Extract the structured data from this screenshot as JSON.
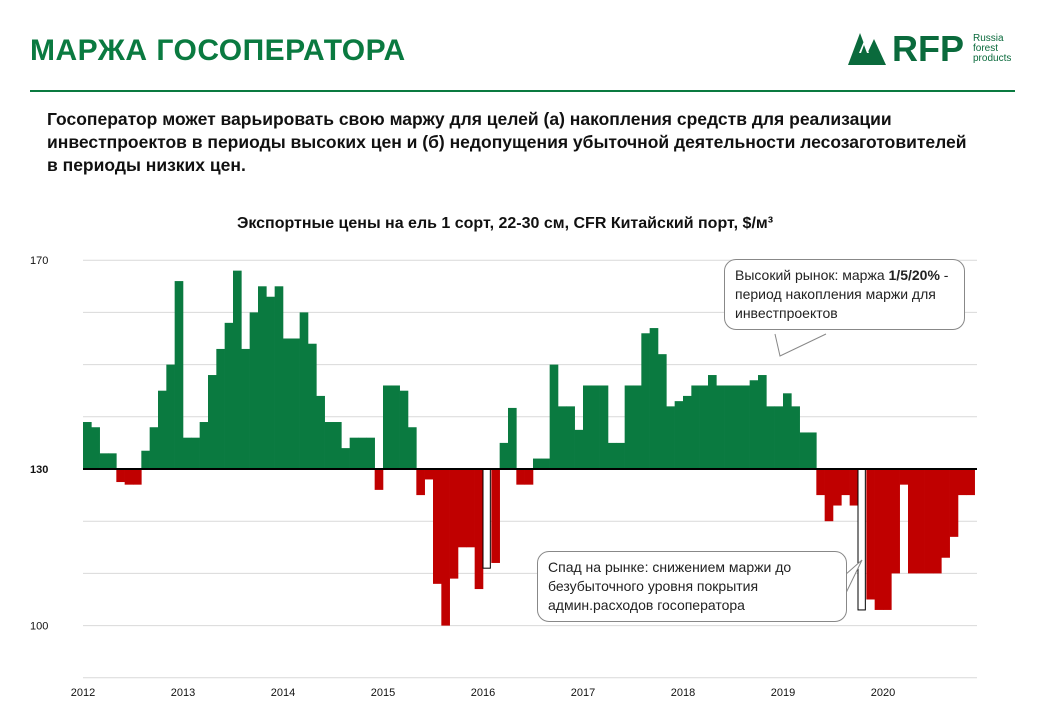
{
  "header": {
    "title": "МАРЖА ГОСОПЕРАТОРА",
    "logo": {
      "mark": "RFP",
      "tagline": [
        "Russia",
        "forest",
        "products"
      ]
    }
  },
  "intro": "Госоператор может варьировать свою маржу для целей (а) накопления средств для реализации инвестпроектов в периоды высоких цен и (б) недопущения убыточной деятельности лесозаготовителей в периоды низких цен.",
  "callouts": {
    "high": {
      "pre": "Высокий рынок: маржа ",
      "bold": "1/5/20%",
      "post": " - период накопления маржи для инвестпроектов"
    },
    "low": "Спад на рынке: снижением  маржи до безубыточного уровня покрытия админ.расходов  госоператора"
  },
  "colors": {
    "positive": "#0a7a40",
    "negative": "#c00000",
    "hollow": "#ffffff"
  },
  "chart_data": {
    "type": "bar",
    "title": "Экспортные цены на ель 1 сорт, 22-30 см, CFR Китайский порт, $/м³",
    "baseline": 130,
    "ylim": [
      90,
      172
    ],
    "yticks": [
      {
        "value": 170,
        "label": "170"
      },
      {
        "value": 130,
        "label": "130"
      },
      {
        "value": 100,
        "label": "100"
      }
    ],
    "grid_step": 10,
    "xticks": [
      "2012",
      "2013",
      "2014",
      "2015",
      "2016",
      "2017",
      "2018",
      "2019",
      "2020"
    ],
    "start": "2012-01",
    "frequency": "monthly",
    "values": [
      139,
      138,
      133,
      133,
      127.5,
      127,
      127,
      133.5,
      138,
      145,
      150,
      166,
      136,
      136,
      139,
      148,
      153,
      158,
      168,
      153,
      160,
      165,
      163,
      165,
      155,
      155,
      160,
      154,
      144,
      139,
      139,
      134,
      136,
      136,
      136,
      126,
      146,
      146,
      145,
      138,
      125,
      128,
      108,
      100,
      109,
      115,
      115,
      107,
      111,
      112,
      135,
      141.7,
      127,
      127,
      132,
      132,
      150,
      142,
      142,
      137.5,
      146,
      146,
      146,
      135,
      135,
      146,
      146,
      156,
      157,
      152,
      142,
      143,
      144,
      146,
      146,
      148,
      146,
      146,
      146,
      146,
      147,
      148,
      142,
      142,
      144.5,
      142,
      137,
      137,
      125,
      120,
      123,
      125,
      123,
      103,
      105,
      103,
      103,
      110,
      127,
      110,
      110,
      110,
      110,
      113,
      117,
      125,
      125
    ],
    "hollow_indices": [
      48,
      93
    ]
  }
}
